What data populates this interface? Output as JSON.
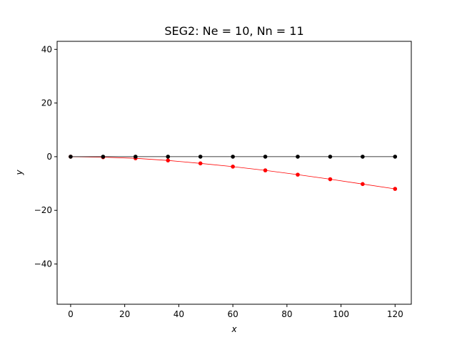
{
  "chart_data": {
    "type": "line",
    "title": "SEG2: Ne = 10, Nn = 11",
    "xlabel": "x",
    "ylabel": "y",
    "xlim": [
      -5,
      126
    ],
    "ylim": [
      -55,
      43
    ],
    "xticks": [
      0,
      20,
      40,
      60,
      80,
      100,
      120
    ],
    "yticks": [
      -40,
      -20,
      0,
      20,
      40
    ],
    "xtick_labels": [
      "0",
      "20",
      "40",
      "60",
      "80",
      "100",
      "120"
    ],
    "ytick_labels": [
      "−40",
      "−20",
      "0",
      "20",
      "40"
    ],
    "grid": false,
    "series": [
      {
        "color": "#000000",
        "x": [
          0,
          12,
          24,
          36,
          48,
          60,
          72,
          84,
          96,
          108,
          120
        ],
        "y": [
          0,
          0,
          0,
          0,
          0,
          0,
          0,
          0,
          0,
          0,
          0
        ]
      },
      {
        "color": "#ff0000",
        "x": [
          0,
          12,
          24,
          36,
          48,
          60,
          72,
          84,
          96,
          108,
          120
        ],
        "y": [
          0,
          -0.2,
          -0.6,
          -1.4,
          -2.5,
          -3.7,
          -5.1,
          -6.7,
          -8.4,
          -10.2,
          -12.0
        ]
      }
    ]
  }
}
